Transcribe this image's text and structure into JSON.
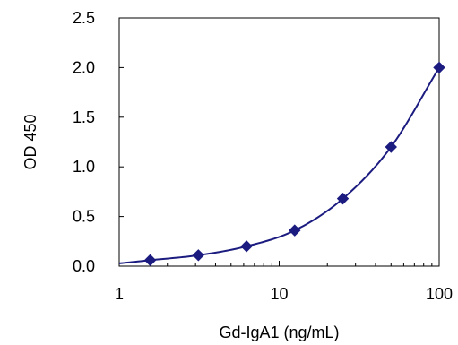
{
  "chart_data": {
    "type": "line",
    "title": "",
    "xlabel": "Gd-IgA1 (ng/mL)",
    "ylabel": "OD 450",
    "x_scale": "log",
    "xlim": [
      1,
      100
    ],
    "ylim": [
      0,
      2.5
    ],
    "x_ticks": [
      1,
      10,
      100
    ],
    "x_tick_labels": [
      "1",
      "10",
      "100"
    ],
    "y_ticks": [
      0,
      0.5,
      1.0,
      1.5,
      2.0,
      2.5
    ],
    "y_tick_labels": [
      "0.0",
      "0.5",
      "1.0",
      "1.5",
      "2.0",
      "2.5"
    ],
    "grid": false,
    "legend": "none",
    "series": [
      {
        "marker": "diamond",
        "color": "#1c1c80",
        "x": [
          1.5625,
          3.125,
          6.25,
          12.5,
          25,
          50,
          100
        ],
        "y": [
          0.06,
          0.11,
          0.2,
          0.36,
          0.68,
          1.2,
          2.0
        ]
      }
    ]
  }
}
